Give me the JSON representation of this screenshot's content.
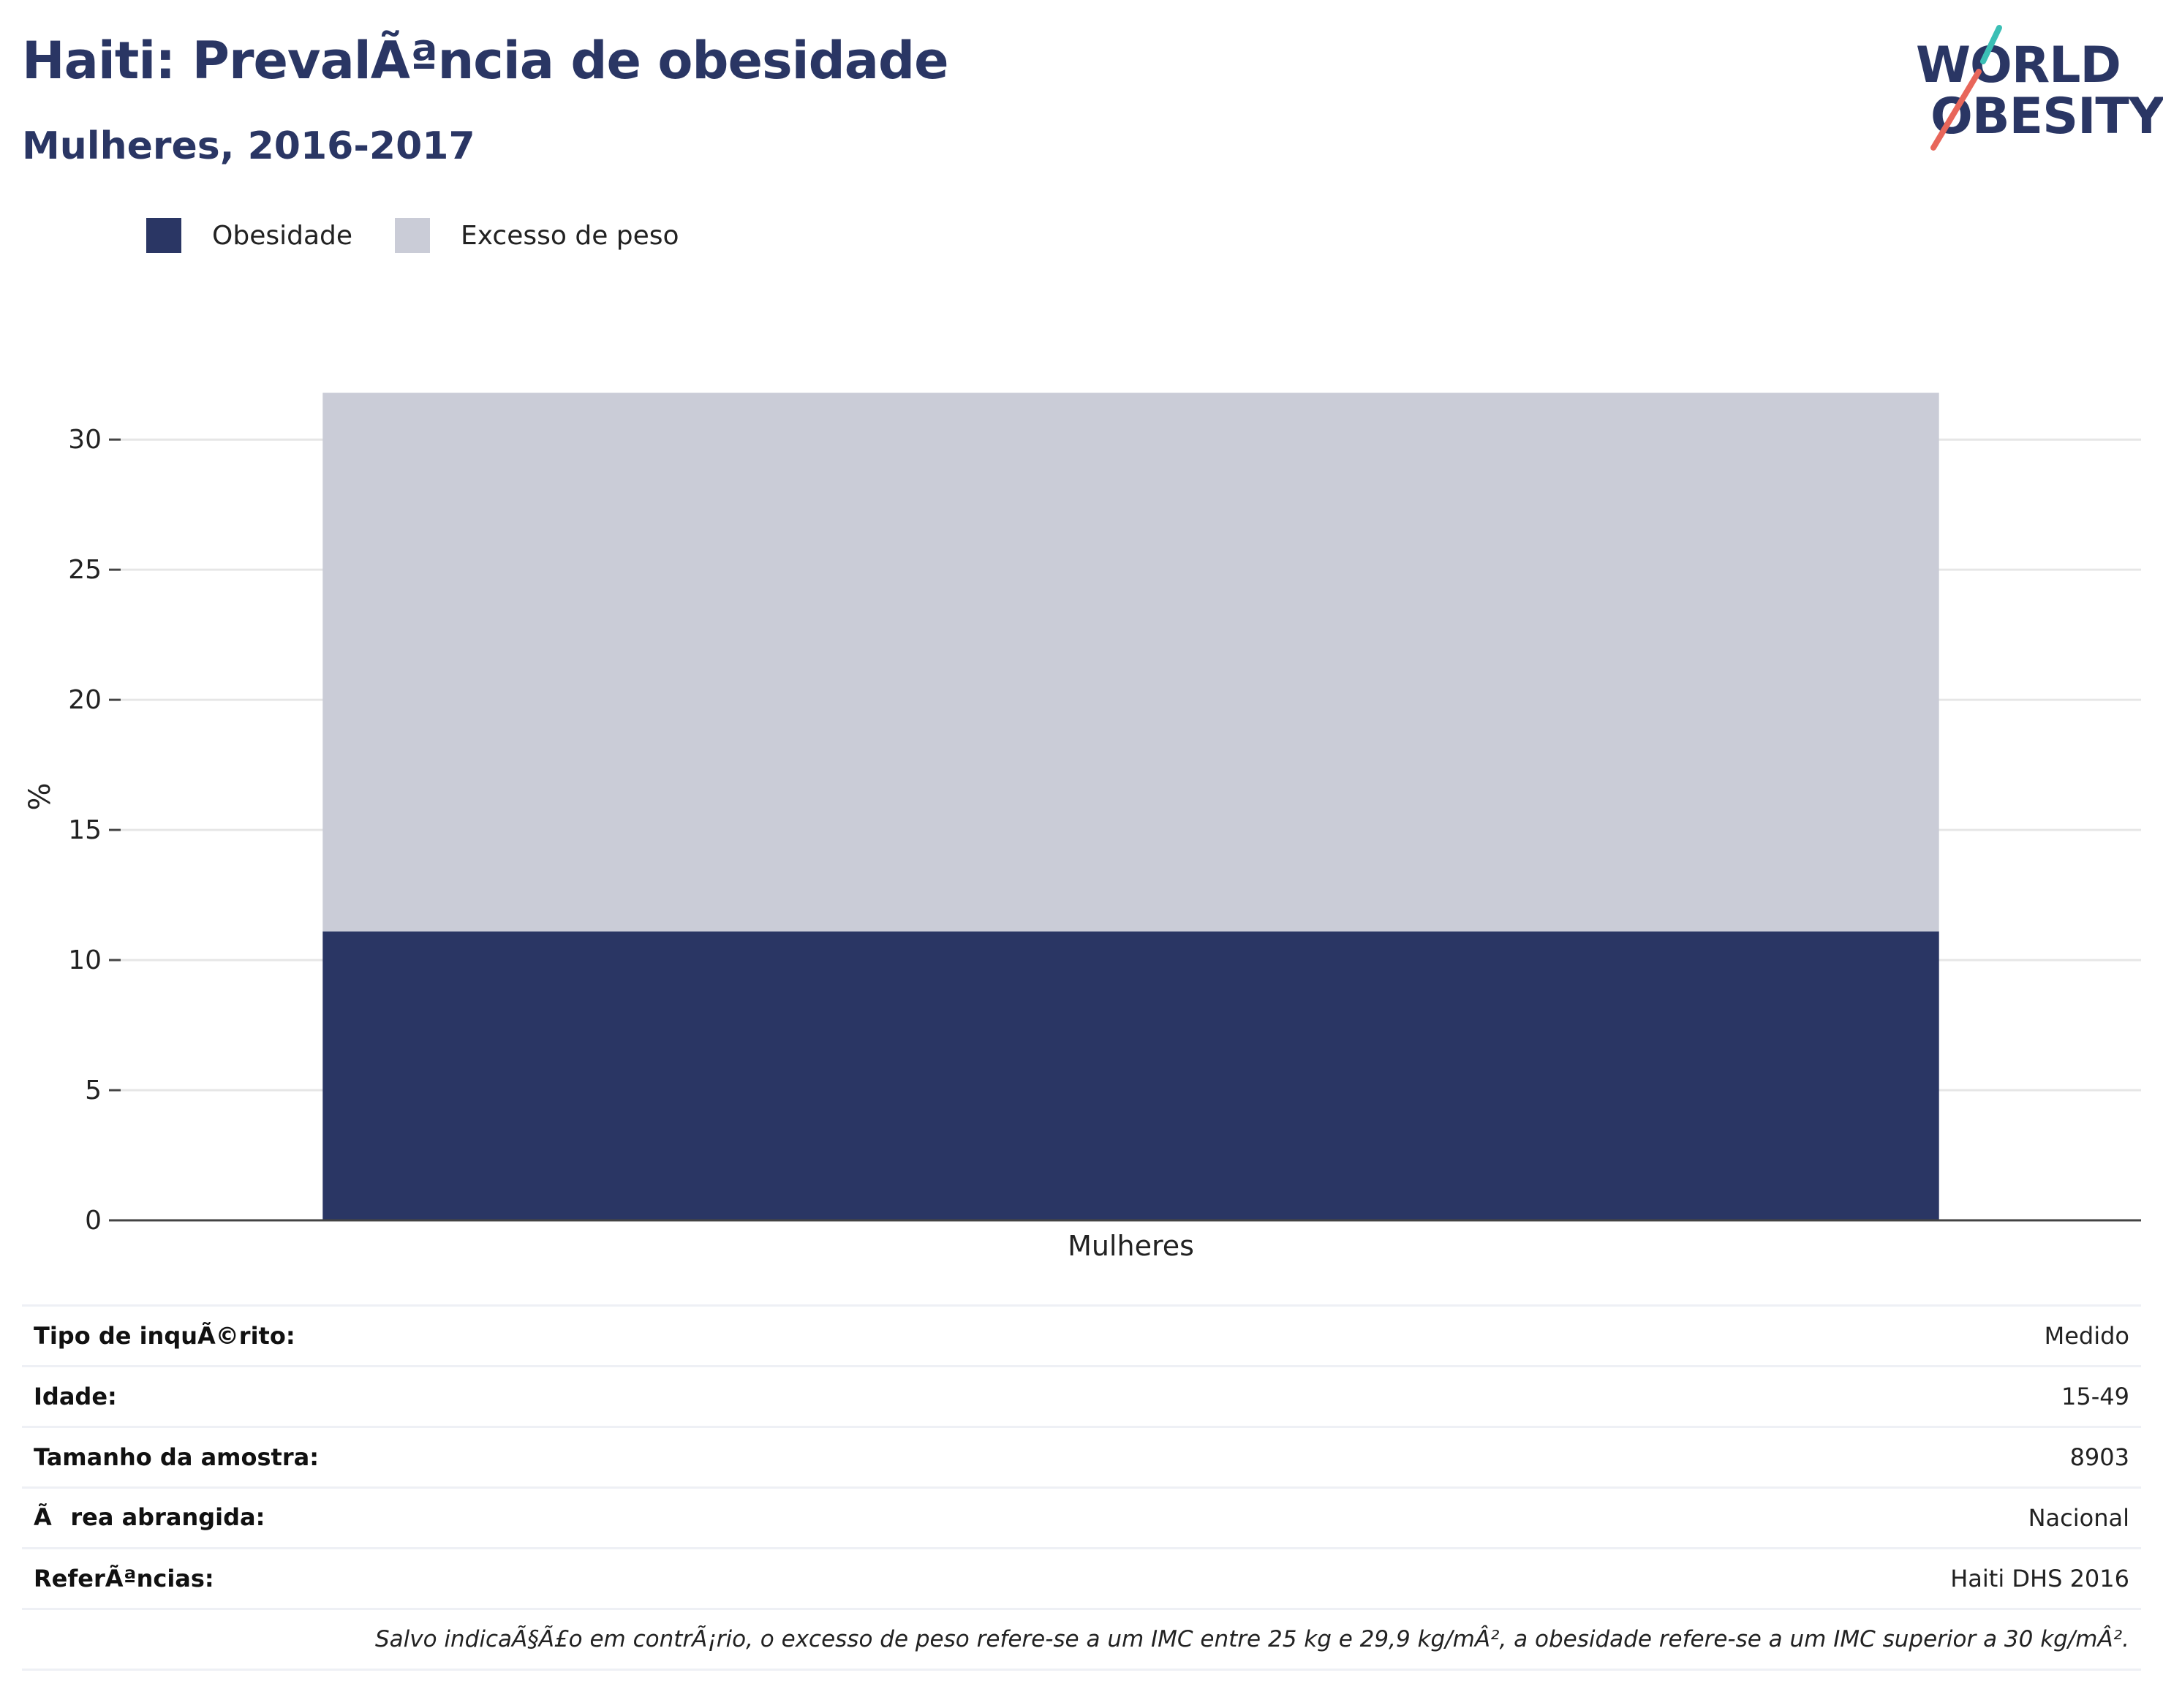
{
  "header": {
    "title": "Haiti: PrevalÃªncia de obesidade",
    "subtitle": "Mulheres, 2016-2017"
  },
  "logo": {
    "line1": "WORLD",
    "line2": "OBESITY",
    "accent_teal": "#3bbfb5",
    "accent_red": "#e8665a"
  },
  "colors": {
    "obesity": "#2a3664",
    "overweight": "#caccd7",
    "gridline": "#e6e6e6",
    "axis": "#444444"
  },
  "legend": {
    "items": [
      {
        "label": "Obesidade",
        "color": "#2a3664"
      },
      {
        "label": "Excesso de peso",
        "color": "#caccd7"
      }
    ]
  },
  "chart_data": {
    "type": "bar",
    "stacked": true,
    "categories": [
      "Mulheres"
    ],
    "series": [
      {
        "name": "Obesidade",
        "values": [
          11.1
        ]
      },
      {
        "name": "Excesso de peso",
        "values": [
          20.7
        ]
      }
    ],
    "title": "Haiti: PrevalÃªncia de obesidade",
    "subtitle": "Mulheres, 2016-2017",
    "xlabel": "",
    "ylabel": "%",
    "ylim": [
      0,
      32
    ],
    "yticks": [
      0,
      5,
      10,
      15,
      20,
      25,
      30
    ],
    "grid": true,
    "legend_position": "top-left"
  },
  "info": {
    "rows": [
      {
        "label": "Tipo de inquÃ©rito:",
        "value": "Medido"
      },
      {
        "label": "Idade:",
        "value": "15-49"
      },
      {
        "label": "Tamanho da amostra:",
        "value": "8903"
      },
      {
        "label": "Ãrea abrangida:",
        "value": "Nacional"
      },
      {
        "label": "ReferÃªncias:",
        "value": "Haiti DHS 2016"
      }
    ],
    "note": "Salvo indicaÃ§Ã£o em contrÃ¡rio, o excesso de peso refere-se a um IMC entre 25 kg e 29,9 kg/mÂ², a obesidade refere-se a um IMC superior a 30 kg/mÂ²."
  }
}
